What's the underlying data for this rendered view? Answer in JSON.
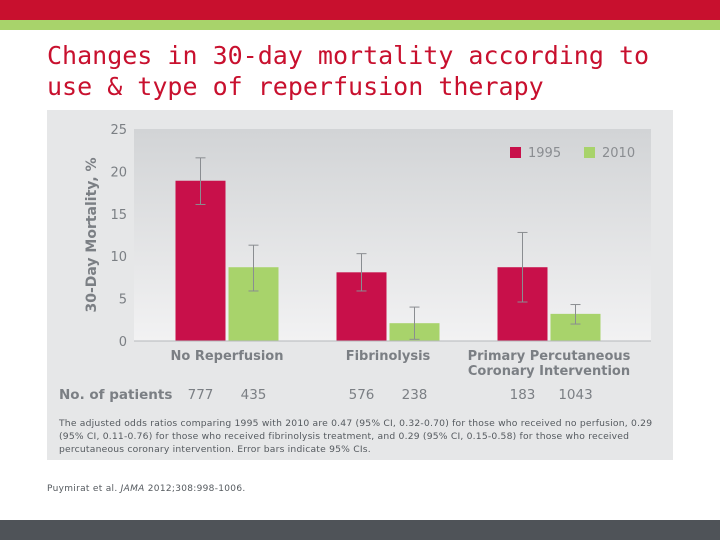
{
  "title": "Changes in 30-day mortality according to use & type of reperfusion therapy",
  "chart_data": {
    "type": "bar",
    "title": "",
    "xlabel": "",
    "ylabel": "30-Day Mortality, %",
    "ylim": [
      0,
      25
    ],
    "yticks": [
      "25",
      "20",
      "15",
      "10",
      "5",
      "0"
    ],
    "grid": false,
    "legend_position": "top-right",
    "categories": [
      [
        "No Reperfusion"
      ],
      [
        "Fibrinolysis"
      ],
      [
        "Primary Percutaneous",
        "Coronary Intervention"
      ]
    ],
    "series": [
      {
        "name": "1995",
        "color": "#c8104a",
        "values": [
          18.9,
          8.1,
          8.7
        ],
        "err_low": [
          16.1,
          5.9,
          4.6
        ],
        "err_high": [
          21.6,
          10.3,
          12.8
        ]
      },
      {
        "name": "2010",
        "color": "#a8d36b",
        "values": [
          8.7,
          2.1,
          3.2
        ],
        "err_low": [
          5.9,
          0.2,
          2.0
        ],
        "err_high": [
          11.3,
          4.0,
          4.3
        ]
      }
    ],
    "patients_label": "No. of patients",
    "patients": [
      [
        "777",
        "435"
      ],
      [
        "576",
        "238"
      ],
      [
        "183",
        "1043"
      ]
    ]
  },
  "note": "The adjusted odds ratios comparing 1995 with 2010 are 0.47 (95% CI, 0.32-0.70) for those who received no perfusion, 0.29 (95% CI, 0.11-0.76) for those who received fibrinolysis treatment, and 0.29 (95% CI, 0.15-0.58) for those who received percutaneous coronary intervention. Error bars indicate 95% CIs.",
  "citation": {
    "authors": "Puymirat et al.",
    "journal": "JAMA",
    "details": "2012;308:998-1006."
  }
}
